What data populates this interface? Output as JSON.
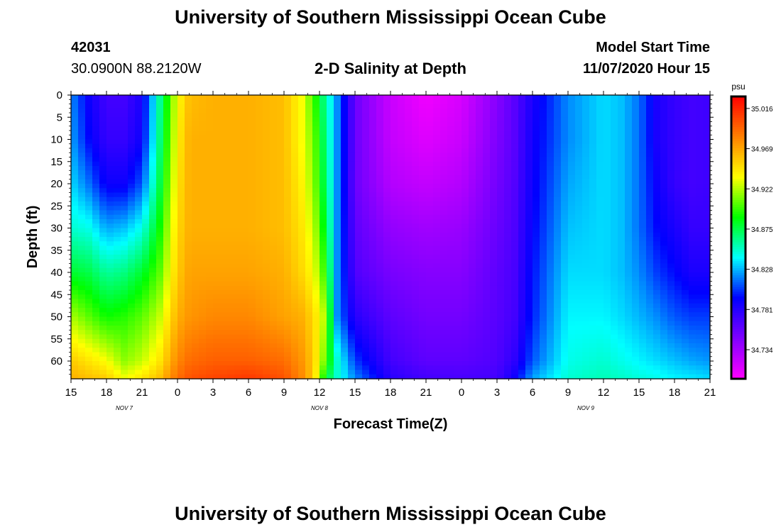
{
  "page": {
    "title_top": "University of Southern Mississippi Ocean Cube",
    "title_bottom": "University of Southern Mississippi Ocean Cube",
    "station_id": "42031",
    "station_location": "30.0900N 88.2120W",
    "plot_title": "2-D Salinity at Depth",
    "model_start_label": "Model Start Time",
    "model_start_value": "11/07/2020 Hour 15"
  },
  "colors": {
    "background": "#ffffff",
    "text": "#000000",
    "colormap": [
      "#ff00ff",
      "#8000ff",
      "#0000ff",
      "#00ffff",
      "#00ff00",
      "#ffff00",
      "#ff8000",
      "#ff0000"
    ]
  },
  "chart_data": {
    "type": "heatmap",
    "title": "2-D Salinity at Depth",
    "xlabel": "Forecast Time(Z)",
    "ylabel": "Depth (ft)",
    "x_tick_labels": [
      "15",
      "18",
      "21",
      "0",
      "3",
      "6",
      "9",
      "12",
      "15",
      "18",
      "21",
      "0",
      "3",
      "6",
      "9",
      "12",
      "15",
      "18",
      "21"
    ],
    "x_range_hours": [
      0,
      54
    ],
    "date_labels": [
      {
        "text": "NOV  7",
        "hour": 4.5
      },
      {
        "text": "NOV  8",
        "hour": 21
      },
      {
        "text": "NOV  9",
        "hour": 43.5
      }
    ],
    "y_tick_labels": [
      "0",
      "5",
      "10",
      "15",
      "20",
      "25",
      "30",
      "35",
      "40",
      "45",
      "50",
      "55",
      "60"
    ],
    "y_range_ft": [
      0,
      64
    ],
    "colorbar": {
      "unit": "psu",
      "range": [
        34.7,
        35.03
      ],
      "tick_labels": [
        "35.016",
        "34.969",
        "34.922",
        "34.875",
        "34.828",
        "34.781",
        "34.734"
      ],
      "tick_values": [
        35.016,
        34.969,
        34.922,
        34.875,
        34.828,
        34.781,
        34.734
      ]
    },
    "salinity_profiles_psu": {
      "hours": [
        0,
        1.5,
        3,
        4.5,
        6,
        7.5,
        9,
        10,
        12,
        15,
        18,
        19.5,
        20.5,
        21.5,
        22.5,
        24,
        27,
        30,
        33,
        36,
        37.5,
        39,
        42,
        45,
        46.5,
        48,
        49.5,
        51,
        52.5,
        54
      ],
      "depths_ft": [
        0,
        10,
        20,
        30,
        40,
        50,
        60,
        64
      ],
      "values": [
        [
          34.82,
          34.825,
          34.835,
          34.85,
          34.88,
          34.92,
          34.955,
          34.965
        ],
        [
          34.79,
          34.795,
          34.815,
          34.845,
          34.875,
          34.905,
          34.945,
          34.96
        ],
        [
          34.77,
          34.775,
          34.79,
          34.825,
          34.86,
          34.89,
          34.935,
          34.955
        ],
        [
          34.77,
          34.775,
          34.79,
          34.83,
          34.865,
          34.895,
          34.915,
          34.935
        ],
        [
          34.785,
          34.79,
          34.81,
          34.845,
          34.88,
          34.905,
          34.925,
          34.945
        ],
        [
          34.86,
          34.865,
          34.875,
          34.89,
          34.905,
          34.925,
          34.945,
          34.96
        ],
        [
          34.935,
          34.94,
          34.945,
          34.95,
          34.955,
          34.965,
          34.98,
          34.99
        ],
        [
          34.96,
          34.965,
          34.965,
          34.965,
          34.97,
          34.975,
          34.99,
          35.0
        ],
        [
          34.965,
          34.965,
          34.965,
          34.965,
          34.97,
          34.98,
          34.995,
          35.005
        ],
        [
          34.965,
          34.965,
          34.965,
          34.965,
          34.97,
          34.98,
          34.995,
          35.01
        ],
        [
          34.96,
          34.96,
          34.96,
          34.96,
          34.965,
          34.97,
          34.99,
          35.0
        ],
        [
          34.935,
          34.935,
          34.94,
          34.945,
          34.95,
          34.965,
          34.975,
          34.98
        ],
        [
          34.9,
          34.91,
          34.915,
          34.925,
          34.935,
          34.95,
          34.955,
          34.955
        ],
        [
          34.86,
          34.865,
          34.87,
          34.88,
          34.895,
          34.92,
          34.905,
          34.88
        ],
        [
          34.82,
          34.82,
          34.82,
          34.82,
          34.82,
          34.82,
          34.85,
          34.85
        ],
        [
          34.755,
          34.755,
          34.755,
          34.76,
          34.765,
          34.78,
          34.805,
          34.82
        ],
        [
          34.72,
          34.722,
          34.728,
          34.74,
          34.75,
          34.76,
          34.77,
          34.78
        ],
        [
          34.705,
          34.712,
          34.722,
          34.735,
          34.745,
          34.752,
          34.76,
          34.77
        ],
        [
          34.715,
          34.72,
          34.728,
          34.738,
          34.745,
          34.752,
          34.76,
          34.768
        ],
        [
          34.745,
          34.748,
          34.752,
          34.756,
          34.76,
          34.762,
          34.765,
          34.77
        ],
        [
          34.762,
          34.762,
          34.764,
          34.766,
          34.768,
          34.77,
          34.778,
          34.79
        ],
        [
          34.785,
          34.788,
          34.79,
          34.793,
          34.797,
          34.8,
          34.81,
          34.825
        ],
        [
          34.82,
          34.82,
          34.825,
          34.83,
          34.835,
          34.84,
          34.845,
          34.85
        ],
        [
          34.835,
          34.835,
          34.835,
          34.835,
          34.835,
          34.84,
          34.85,
          34.855
        ],
        [
          34.83,
          34.83,
          34.83,
          34.83,
          34.83,
          34.835,
          34.845,
          34.852
        ],
        [
          34.815,
          34.815,
          34.815,
          34.815,
          34.82,
          34.828,
          34.84,
          34.848
        ],
        [
          34.785,
          34.785,
          34.79,
          34.795,
          34.805,
          34.82,
          34.835,
          34.845
        ],
        [
          34.775,
          34.775,
          34.775,
          34.785,
          34.795,
          34.81,
          34.83,
          34.84
        ],
        [
          34.77,
          34.77,
          34.77,
          34.775,
          34.785,
          34.805,
          34.825,
          34.838
        ],
        [
          34.772,
          34.772,
          34.772,
          34.775,
          34.785,
          34.805,
          34.822,
          34.835
        ]
      ]
    }
  }
}
